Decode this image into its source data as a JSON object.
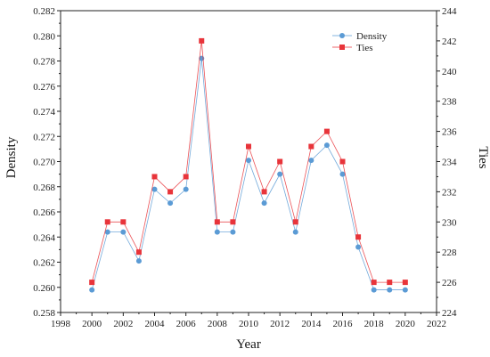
{
  "chart_data": {
    "type": "line",
    "x": [
      2000,
      2001,
      2002,
      2003,
      2004,
      2005,
      2006,
      2007,
      2008,
      2009,
      2010,
      2011,
      2012,
      2013,
      2014,
      2015,
      2016,
      2017,
      2018,
      2019,
      2020
    ],
    "xlabel": "Year",
    "xlim": [
      1998,
      2022
    ],
    "xticks": [
      "1998",
      "2000",
      "2002",
      "2004",
      "2006",
      "2008",
      "2010",
      "2012",
      "2014",
      "2016",
      "2018",
      "2020",
      "2022"
    ],
    "ylabel_left": "Density",
    "ylim_left": [
      0.258,
      0.282
    ],
    "yticks_left": [
      "0.258",
      "0.260",
      "0.262",
      "0.264",
      "0.266",
      "0.268",
      "0.270",
      "0.272",
      "0.274",
      "0.276",
      "0.278",
      "0.280",
      "0.282"
    ],
    "ylabel_right": "Ties",
    "ylim_right": [
      224,
      244
    ],
    "yticks_right": [
      "224",
      "226",
      "228",
      "230",
      "232",
      "234",
      "236",
      "238",
      "240",
      "242",
      "244"
    ],
    "legend_position": "top-right",
    "series": [
      {
        "name": "Density",
        "axis": "left",
        "color": "#5b9bd5",
        "marker": "circle",
        "values": [
          0.2598,
          0.2644,
          0.2644,
          0.2621,
          0.2678,
          0.2667,
          0.2678,
          0.2782,
          0.2644,
          0.2644,
          0.2701,
          0.2667,
          0.269,
          0.2644,
          0.2701,
          0.2713,
          0.269,
          0.2632,
          0.2598,
          0.2598,
          0.2598
        ]
      },
      {
        "name": "Ties",
        "axis": "right",
        "color": "#e8343a",
        "marker": "square",
        "values": [
          226,
          230,
          230,
          228,
          233,
          232,
          233,
          242,
          230,
          230,
          235,
          232,
          234,
          230,
          235,
          236,
          234,
          229,
          226,
          226,
          226
        ]
      }
    ]
  }
}
